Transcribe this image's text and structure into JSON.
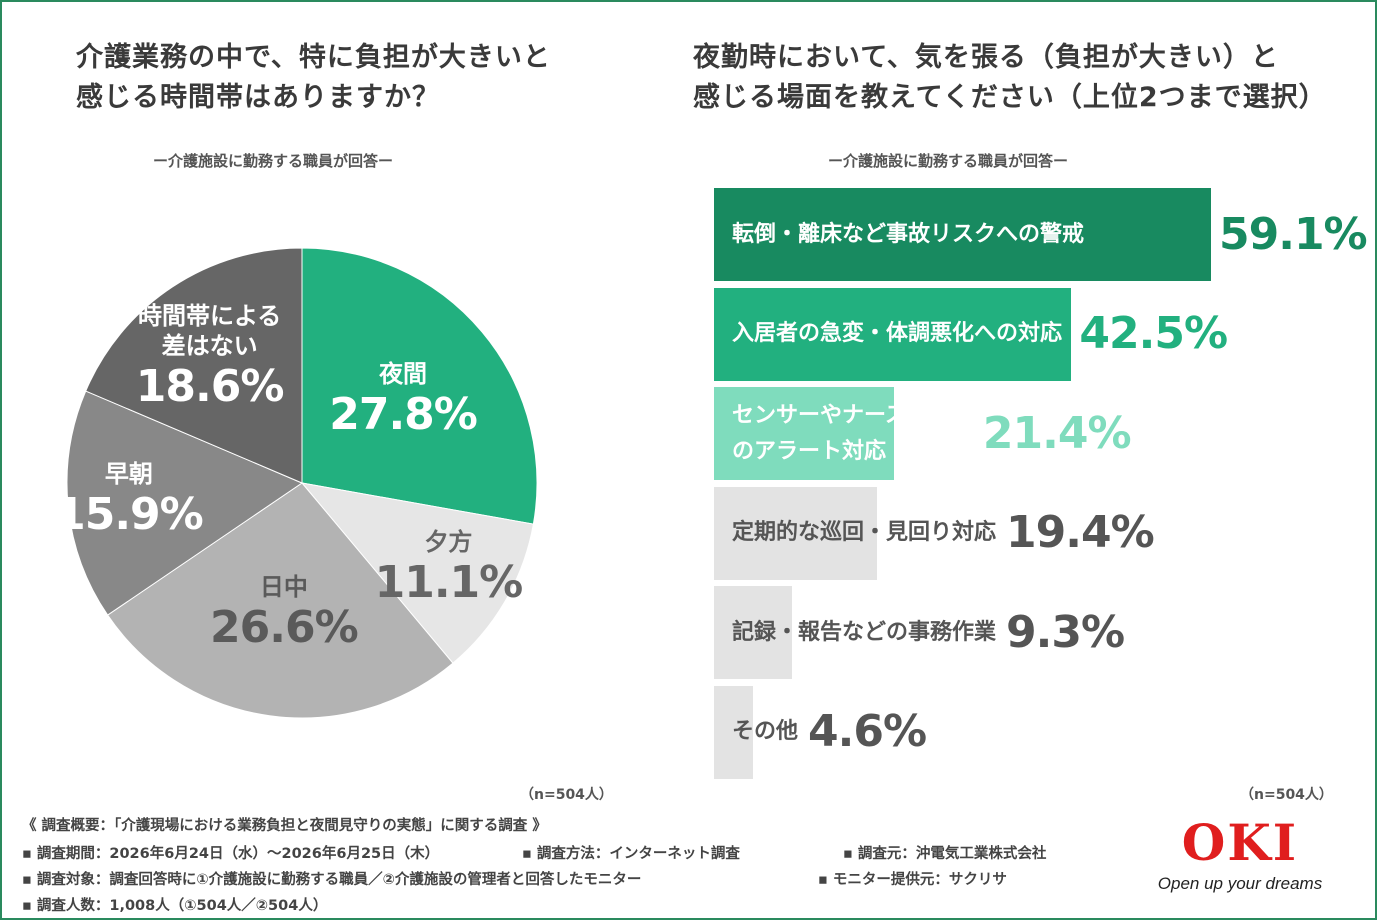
{
  "left": {
    "title_line1": "介護業務の中で、特に負担が大きいと",
    "title_line2": "感じる時間帯はありますか？",
    "subtitle": "ー介護施設に勤務する職員が回答ー",
    "n_note": "（n=504人）"
  },
  "right": {
    "title_line1": "夜勤時において、気を張る（負担が大きい）と",
    "title_line2": "感じる場面を教えてください（上位2つまで選択）",
    "subtitle": "ー介護施設に勤務する職員が回答ー",
    "n_note": "（n=504人）"
  },
  "chart_data": [
    {
      "type": "pie",
      "title": "介護業務の中で、特に負担が大きいと感じる時間帯はありますか？",
      "slices": [
        {
          "label": "夜間",
          "value": 27.8,
          "value_text": "27.8%",
          "color": "#22b07f",
          "text_color": "#ffffff"
        },
        {
          "label": "夕方",
          "value": 11.1,
          "value_text": "11.1%",
          "color": "#e6e6e6",
          "text_color": "#666666"
        },
        {
          "label": "日中",
          "value": 26.6,
          "value_text": "26.6%",
          "color": "#b3b3b3",
          "text_color": "#5a5a5a"
        },
        {
          "label": "早朝",
          "value": 15.9,
          "value_text": "15.9%",
          "color": "#888888",
          "text_color": "#ffffff"
        },
        {
          "label": "時間帯による差はない",
          "label_lines": [
            "時間帯による",
            "差はない"
          ],
          "value": 18.6,
          "value_text": "18.6%",
          "color": "#666666",
          "text_color": "#ffffff"
        }
      ]
    },
    {
      "type": "bar",
      "orientation": "horizontal",
      "title": "夜勤時において、気を張る（負担が大きい）と感じる場面を教えてください（上位2つまで選択）",
      "xlim": [
        0,
        59.1
      ],
      "bars": [
        {
          "label": "転倒・離床など事故リスクへの警戒",
          "label_lines": [
            "転倒・離床など事故リスクへの警戒"
          ],
          "value": 59.1,
          "value_text": "59.1%",
          "color": "#188a60",
          "label_color": "#ffffff",
          "value_color": "#188a60"
        },
        {
          "label": "入居者の急変・体調悪化への対応",
          "label_lines": [
            "入居者の急変・体調悪化への対応"
          ],
          "value": 42.5,
          "value_text": "42.5%",
          "color": "#22b07f",
          "label_color": "#ffffff",
          "value_color": "#22b07f"
        },
        {
          "label": "センサーやナースコールのアラート対応",
          "label_lines": [
            "センサーやナースコール",
            "のアラート対応"
          ],
          "value": 21.4,
          "value_text": "21.4%",
          "color": "#7fdcbd",
          "label_color": "#ffffff",
          "value_color": "#7fdcbd"
        },
        {
          "label": "定期的な巡回・見回り対応",
          "label_lines": [
            "定期的な巡回・見回り対応"
          ],
          "value": 19.4,
          "value_text": "19.4%",
          "color": "#e3e3e3",
          "label_color": "#555555",
          "value_color": "#555555"
        },
        {
          "label": "記録・報告などの事務作業",
          "label_lines": [
            "記録・報告などの事務作業"
          ],
          "value": 9.3,
          "value_text": "9.3%",
          "color": "#e3e3e3",
          "label_color": "#555555",
          "value_color": "#555555"
        },
        {
          "label": "その他",
          "label_lines": [
            "その他"
          ],
          "value": 4.6,
          "value_text": "4.6%",
          "color": "#e3e3e3",
          "label_color": "#555555",
          "value_color": "#555555"
        }
      ]
    }
  ],
  "footer": {
    "summary": "《 調査概要：「介護現場における業務負担と夜間見守りの実態」に関する調査 》",
    "period": "▪ 調査期間：2026年6月24日（水）～2026年6月25日（木）",
    "method": "▪ 調査方法：インターネット調査",
    "org": "▪ 調査元：沖電気工業株式会社",
    "target": "▪ 調査対象：調査回答時に①介護施設に勤務する職員／②介護施設の管理者と回答したモニター",
    "provider": "▪ モニター提供元：サクリサ",
    "count": "▪ 調査人数：1,008人（①504人／②504人）"
  },
  "logo": {
    "text": "OKI",
    "tagline": "Open up your dreams",
    "color": "#e01e1e"
  }
}
